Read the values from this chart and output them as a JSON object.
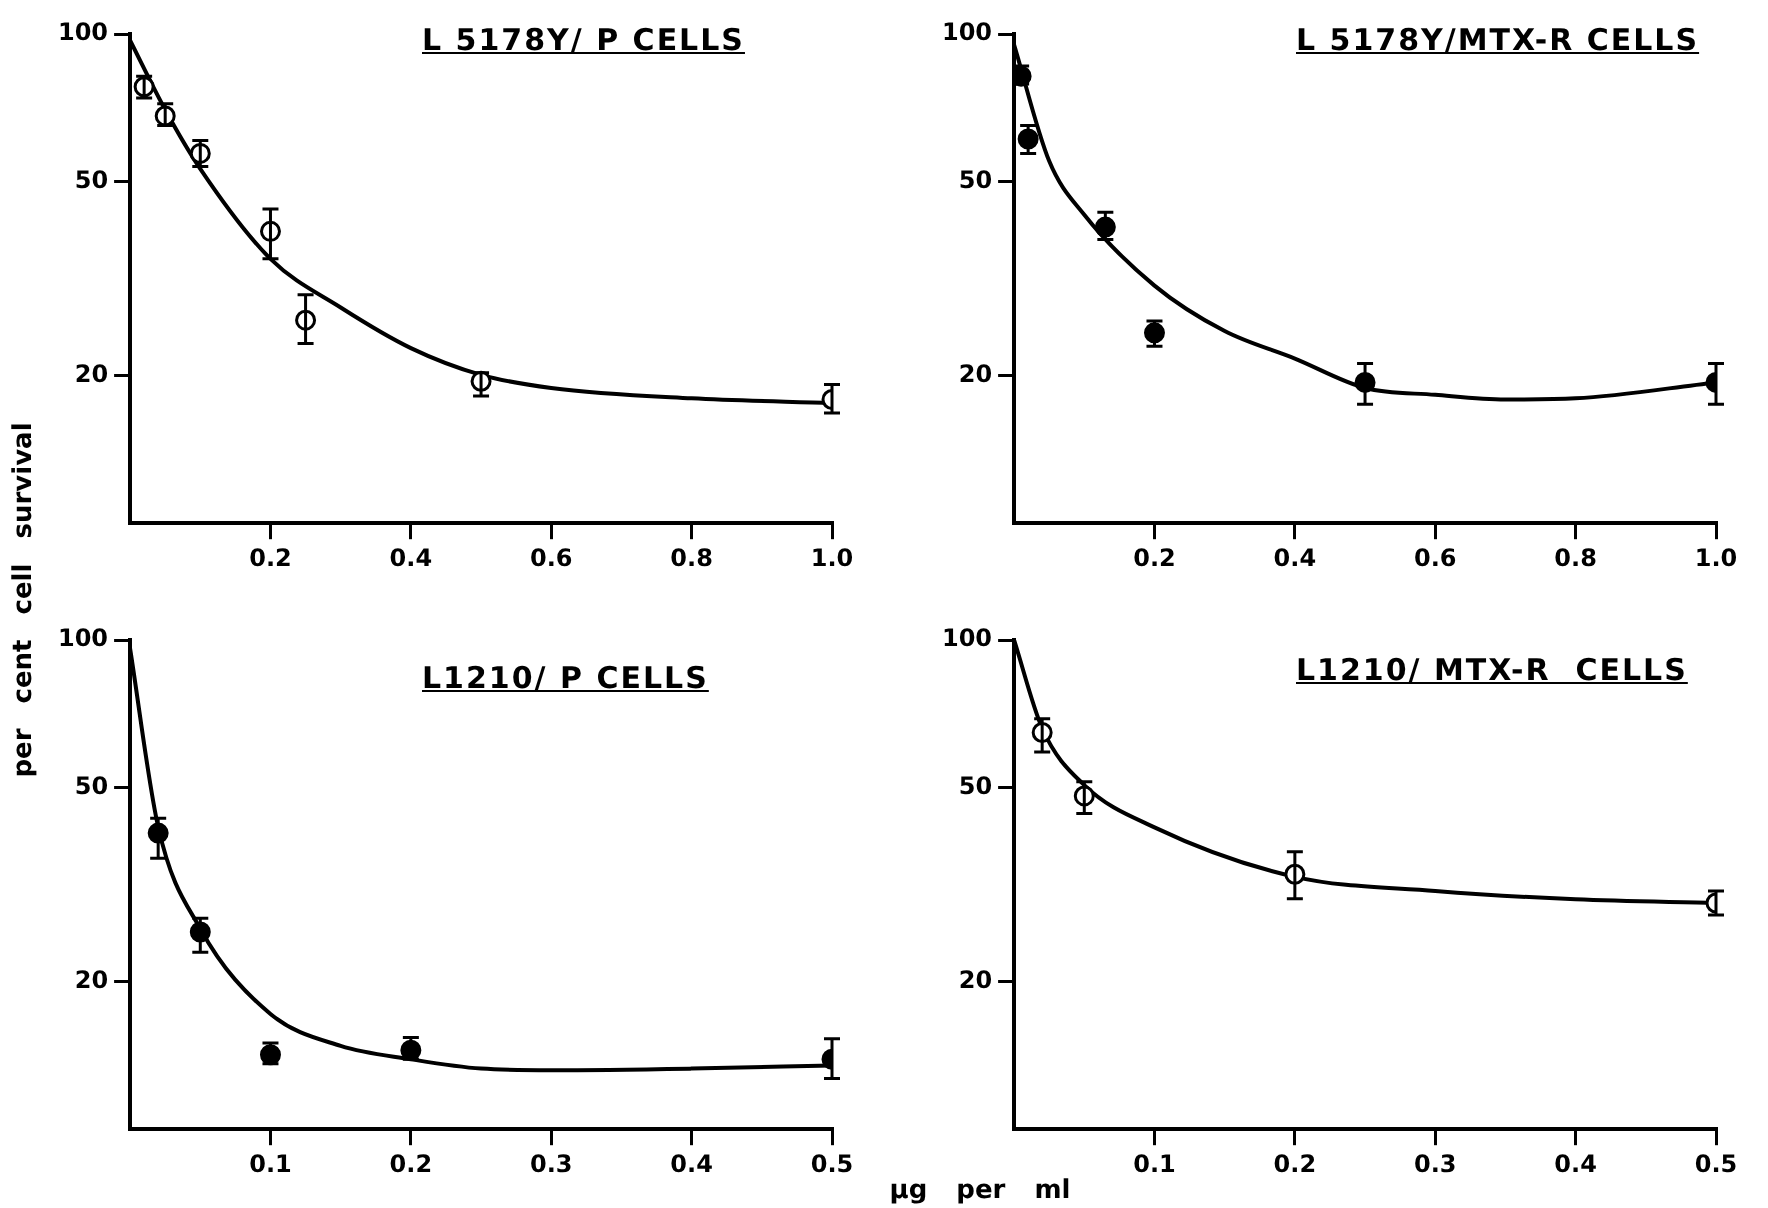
{
  "chart_data": [
    {
      "type": "scatter",
      "title": "L 5178Y/ P CELLS",
      "ylabel": "per cent cell survival",
      "log": "y",
      "legend": false,
      "grid": false,
      "marker": "circle",
      "xlim": [
        0,
        1.0
      ],
      "xticks": [
        0.2,
        0.4,
        0.6,
        0.8,
        {
          "value": 1.0,
          "label": "1.0"
        }
      ],
      "ylim": [
        10,
        100
      ],
      "yticks": [
        20,
        50,
        100
      ],
      "series": [
        {
          "type": "scatter",
          "color": "#ffffff",
          "x": [
            0.02,
            0.05,
            0.1,
            0.2,
            0.25,
            0.5,
            1.0
          ],
          "values": [
            78,
            68,
            57,
            39.5,
            26,
            19.5,
            17.9
          ],
          "errors": [
            [
              74,
              82
            ],
            [
              65,
              72
            ],
            [
              53.6,
              60.6
            ],
            [
              34.7,
              43.9
            ],
            [
              23.3,
              29.3
            ],
            [
              18.2,
              20.3
            ],
            [
              16.8,
              19.2
            ]
          ]
        },
        {
          "type": "line",
          "marker": "none",
          "color": "#000000",
          "x": [
            0,
            0.05,
            0.1,
            0.2,
            0.3,
            0.4,
            0.5,
            0.6,
            0.8,
            1.0
          ],
          "values": [
            97,
            70,
            53,
            34.7,
            27.6,
            22.8,
            20.1,
            18.9,
            18,
            17.6
          ]
        }
      ]
    },
    {
      "type": "scatter",
      "title": "L 5178Y/MTX-R CELLS",
      "log": "y",
      "legend": false,
      "grid": false,
      "marker": "circle",
      "xlim": [
        0,
        1.0
      ],
      "xticks": [
        0.2,
        0.4,
        0.6,
        0.8,
        {
          "value": 1.0,
          "label": "1.0"
        }
      ],
      "ylim": [
        10,
        100
      ],
      "yticks": [
        20,
        50,
        100
      ],
      "series": [
        {
          "type": "scatter",
          "color": "#000000",
          "x": [
            0.01,
            0.02,
            0.13,
            0.2,
            0.5,
            1.0
          ],
          "values": [
            82,
            61,
            40.3,
            24.5,
            19.4,
            19.4
          ],
          "errors": [
            [
              79,
              86
            ],
            [
              57,
              65
            ],
            [
              38,
              43.2
            ],
            [
              23,
              25.9
            ],
            [
              17.5,
              21.2
            ],
            [
              17.5,
              21.2
            ]
          ]
        },
        {
          "type": "line",
          "marker": "none",
          "color": "#000000",
          "x": [
            0,
            0.05,
            0.1,
            0.2,
            0.3,
            0.4,
            0.5,
            0.6,
            0.7,
            0.8,
            1.0
          ],
          "values": [
            95,
            55,
            42.7,
            30.6,
            24.7,
            21.7,
            18.9,
            18.3,
            17.9,
            18,
            19.4
          ]
        }
      ]
    },
    {
      "type": "scatter",
      "title": "L1210/ P CELLS",
      "xlabel": "µg per ml",
      "log": "y",
      "legend": false,
      "grid": false,
      "marker": "circle",
      "xlim": [
        0,
        0.5
      ],
      "xticks": [
        0.1,
        0.2,
        0.3,
        0.4,
        0.5
      ],
      "ylim": [
        10,
        100
      ],
      "yticks": [
        20,
        50,
        100
      ],
      "series": [
        {
          "type": "scatter",
          "color": "#000000",
          "x": [
            0.02,
            0.05,
            0.1,
            0.2,
            0.5
          ],
          "values": [
            40.3,
            25.3,
            14.2,
            14.5,
            13.9
          ],
          "errors": [
            [
              35.8,
              43.2
            ],
            [
              23,
              27
            ],
            [
              13.6,
              15
            ],
            [
              13.9,
              15.4
            ],
            [
              12.7,
              15.3
            ]
          ]
        },
        {
          "type": "line",
          "marker": "none",
          "color": "#000000",
          "x": [
            0,
            0.02,
            0.05,
            0.1,
            0.15,
            0.2,
            0.25,
            0.3,
            0.4,
            0.5
          ],
          "values": [
            96,
            41.5,
            25.7,
            17.2,
            14.8,
            13.9,
            13.3,
            13.2,
            13.3,
            13.5
          ]
        }
      ]
    },
    {
      "type": "scatter",
      "title": "L1210/ MTX-R  CELLS",
      "log": "y",
      "legend": false,
      "grid": false,
      "marker": "circle",
      "xlim": [
        0,
        0.5
      ],
      "xticks": [
        0.1,
        0.2,
        0.3,
        0.4,
        0.5
      ],
      "ylim": [
        10,
        100
      ],
      "yticks": [
        20,
        50,
        100
      ],
      "series": [
        {
          "type": "scatter",
          "color": "#ffffff",
          "x": [
            0.02,
            0.05,
            0.2,
            0.5
          ],
          "values": [
            64.7,
            48,
            33.2,
            29
          ],
          "errors": [
            [
              59,
              69
            ],
            [
              44.2,
              51.3
            ],
            [
              29.6,
              36.9
            ],
            [
              27.4,
              30.7
            ]
          ]
        },
        {
          "type": "line",
          "marker": "none",
          "color": "#000000",
          "x": [
            0,
            0.02,
            0.05,
            0.1,
            0.2,
            0.3,
            0.4,
            0.5
          ],
          "values": [
            100,
            66,
            50.5,
            41.4,
            32.8,
            30.7,
            29.5,
            29
          ]
        }
      ]
    }
  ]
}
